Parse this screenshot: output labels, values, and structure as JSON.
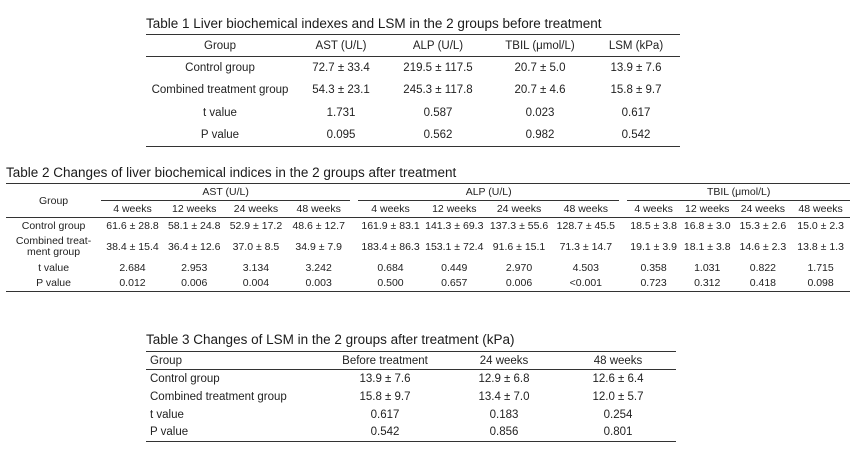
{
  "table1": {
    "caption": "Table 1 Liver biochemical indexes and LSM in the 2 groups before treatment",
    "headers": [
      "Group",
      "AST (U/L)",
      "ALP (U/L)",
      "TBIL (μmol/L)",
      "LSM (kPa)"
    ],
    "rows": [
      [
        "Control group",
        "72.7 ± 33.4",
        "219.5 ± 117.5",
        "20.7 ± 5.0",
        "13.9 ± 7.6"
      ],
      [
        "Combined treatment group",
        "54.3 ± 23.1",
        "245.3 ± 117.8",
        "20.7 ± 4.6",
        "15.8 ± 9.7"
      ],
      [
        "t value",
        "1.731",
        "0.587",
        "0.023",
        "0.617"
      ],
      [
        "P value",
        "0.095",
        "0.562",
        "0.982",
        "0.542"
      ]
    ]
  },
  "table2": {
    "caption": "Table 2 Changes of liver biochemical indices in the 2 groups after treatment",
    "group_header": "Group",
    "groups": [
      "AST (U/L)",
      "ALP (U/L)",
      "TBIL (μmol/L)"
    ],
    "subheaders": [
      "4 weeks",
      "12 weeks",
      "24 weeks",
      "48 weeks"
    ],
    "rows": [
      {
        "label": "Control group",
        "values": [
          "61.6 ± 28.8",
          "58.1 ± 24.8",
          "52.9 ± 17.2",
          "48.6 ± 12.7",
          "161.9 ± 83.1",
          "141.3 ± 69.3",
          "137.3 ± 55.6",
          "128.7 ± 45.5",
          "18.5 ± 3.8",
          "16.8 ± 3.0",
          "15.3 ± 2.6",
          "15.0 ± 2.3"
        ]
      },
      {
        "label": "Combined treat-",
        "label2": "ment group",
        "values": [
          "38.4 ± 15.4",
          "36.4 ± 12.6",
          "37.0 ± 8.5",
          "34.9 ± 7.9",
          "183.4 ± 86.3",
          "153.1 ± 72.4",
          "91.6 ± 15.1",
          "71.3 ± 14.7",
          "19.1 ± 3.9",
          "18.1 ± 3.8",
          "14.6 ± 2.3",
          "13.8 ± 1.3"
        ]
      },
      {
        "label": "t value",
        "values": [
          "2.684",
          "2.953",
          "3.134",
          "3.242",
          "0.684",
          "0.449",
          "2.970",
          "4.503",
          "0.358",
          "1.031",
          "0.822",
          "1.715"
        ]
      },
      {
        "label": "P value",
        "values": [
          "0.012",
          "0.006",
          "0.004",
          "0.003",
          "0.500",
          "0.657",
          "0.006",
          "<0.001",
          "0.723",
          "0.312",
          "0.418",
          "0.098"
        ]
      }
    ]
  },
  "table3": {
    "caption": "Table 3 Changes of LSM in the 2 groups after treatment (kPa)",
    "headers": [
      "Group",
      "Before treatment",
      "24 weeks",
      "48 weeks"
    ],
    "rows": [
      [
        "Control group",
        "13.9 ± 7.6",
        "12.9 ± 6.8",
        "12.6 ± 6.4"
      ],
      [
        "Combined treatment group",
        "15.8 ± 9.7",
        "13.4 ± 7.0",
        "12.0 ± 5.7"
      ],
      [
        "t value",
        "0.617",
        "0.183",
        "0.254"
      ],
      [
        "P value",
        "0.542",
        "0.856",
        "0.801"
      ]
    ]
  }
}
